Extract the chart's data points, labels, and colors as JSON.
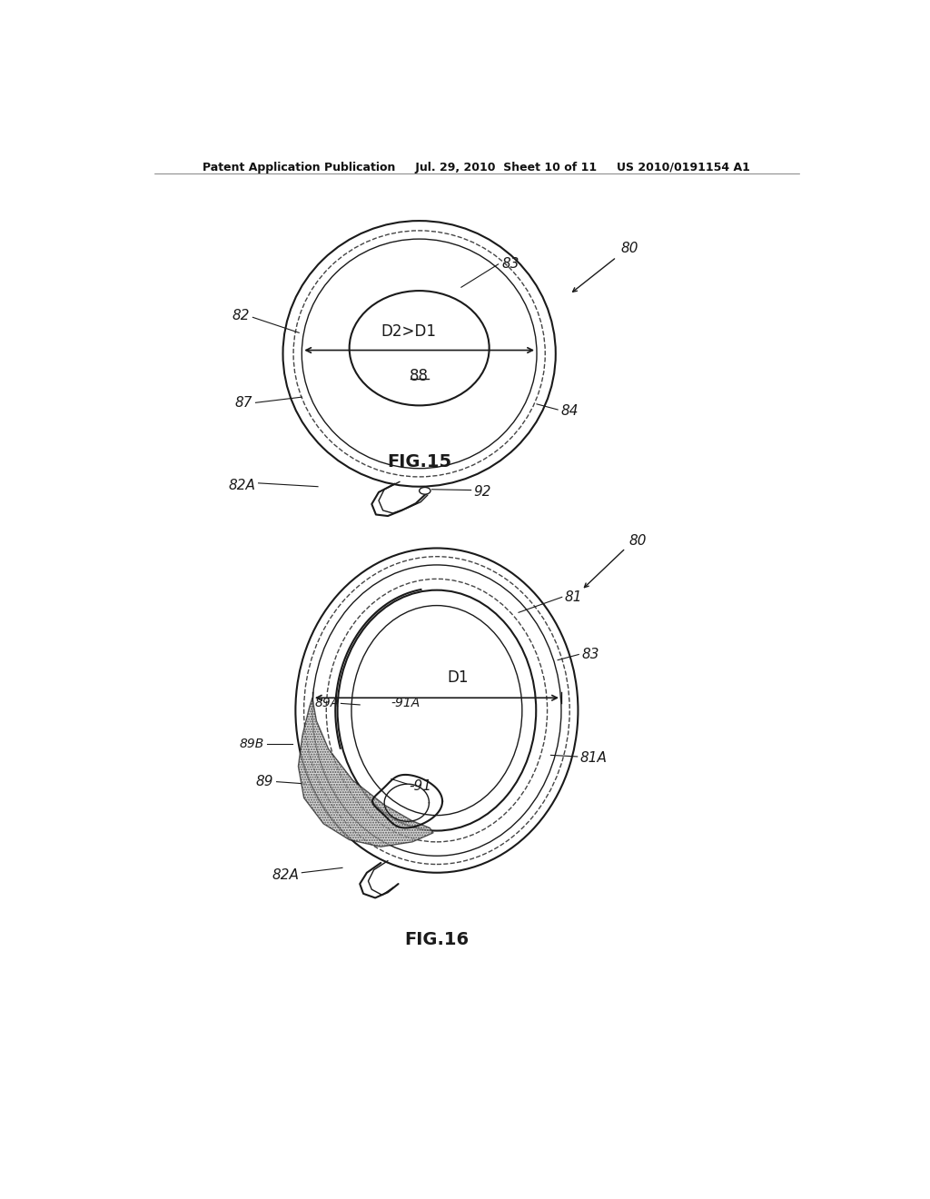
{
  "bg_color": "#ffffff",
  "header_text": "Patent Application Publication     Jul. 29, 2010  Sheet 10 of 11     US 2010/0191154 A1",
  "fig15_label": "FIG.15",
  "fig16_label": "FIG.16",
  "line_color": "#1a1a1a",
  "dashed_color": "#444444",
  "font_size_label": 11,
  "font_size_fig": 14,
  "font_size_header": 9
}
